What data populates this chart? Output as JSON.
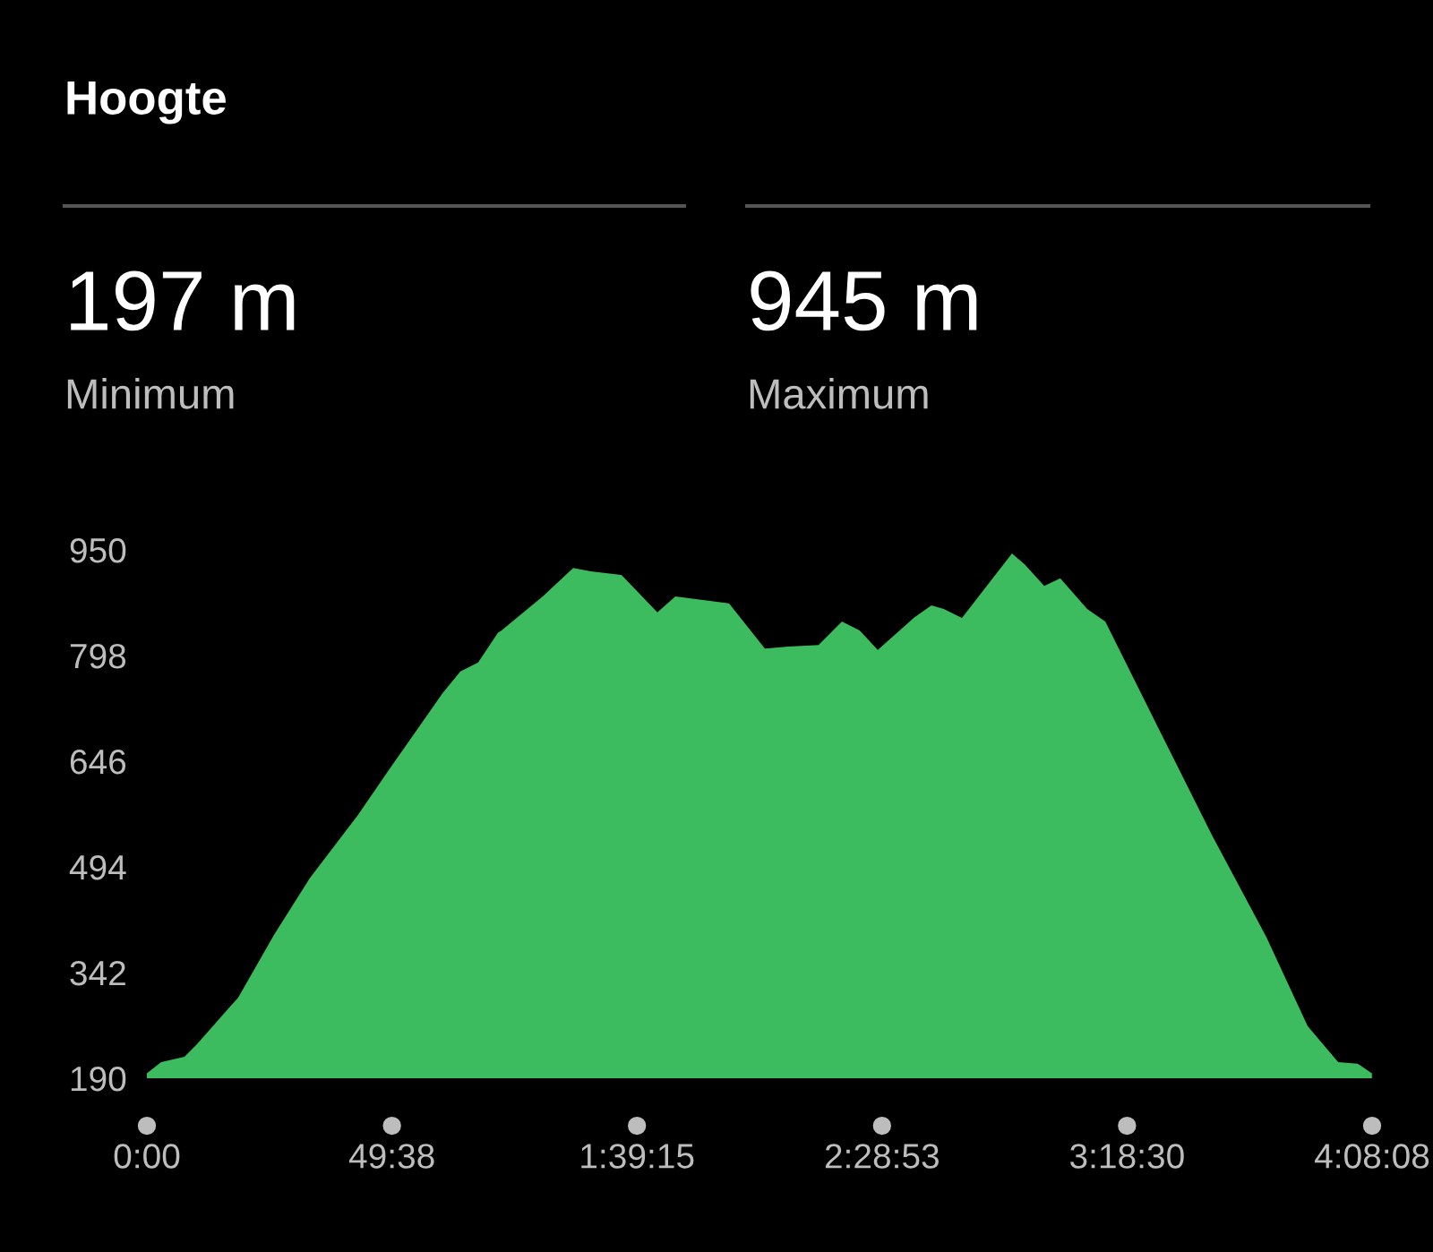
{
  "chart_data": {
    "type": "area",
    "title": "Hoogte",
    "annotations": [
      "197 m",
      "Minimum",
      "945 m",
      "Maximum"
    ],
    "x": [
      0,
      173,
      457,
      608,
      1109,
      1544,
      1980,
      2567,
      2938,
      3287,
      3593,
      3809,
      4025,
      4266,
      4309,
      4810,
      5180,
      5396,
      5767,
      6203,
      6422,
      7074,
      7510,
      7790,
      8161,
      8446,
      8662,
      8881,
      9317,
      9533,
      9684,
      9904,
      10512,
      10667,
      10904,
      11099,
      11426,
      11646,
      12298,
      12949,
      13604,
      14105,
      14476,
      14713,
      14886
    ],
    "series": [
      {
        "color": "#3cbb5f",
        "values": [
          197,
          213,
          221,
          239,
          306,
          396,
          478,
          569,
          633,
          692,
          744,
          775,
          788,
          831,
          834,
          883,
          924,
          919,
          914,
          860,
          883,
          873,
          808,
          811,
          813,
          847,
          834,
          806,
          852,
          870,
          865,
          852,
          945,
          929,
          898,
          909,
          865,
          847,
          692,
          538,
          393,
          265,
          213,
          211,
          197
        ]
      }
    ],
    "xlim": [
      0,
      14888
    ],
    "xticks": [
      {
        "value": 0,
        "label": "0:00"
      },
      {
        "value": 2978,
        "label": "49:38"
      },
      {
        "value": 5955,
        "label": "1:39:15"
      },
      {
        "value": 8933,
        "label": "2:28:53"
      },
      {
        "value": 11910,
        "label": "3:18:30"
      },
      {
        "value": 14888,
        "label": "4:08:08"
      }
    ],
    "ylim": [
      190,
      950
    ],
    "yticks": [
      190,
      342,
      494,
      646,
      798,
      950
    ],
    "grid": false,
    "legend": false
  }
}
